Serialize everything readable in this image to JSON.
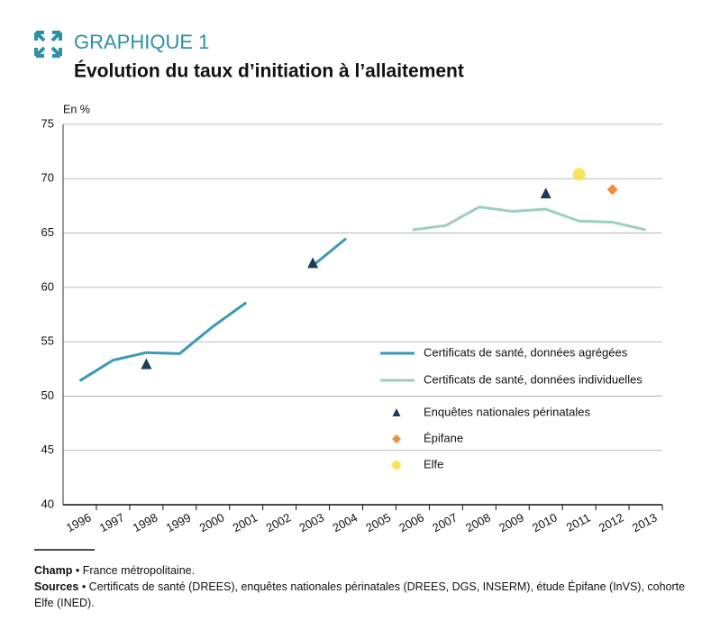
{
  "header": {
    "label": "GRAPHIQUE 1"
  },
  "chart_data": {
    "type": "line",
    "title": "Évolution du taux d’initiation à l’allaitement",
    "ylabel": "En %",
    "categories": [
      "1996",
      "1997",
      "1998",
      "1999",
      "2000",
      "2001",
      "2002",
      "2003",
      "2004",
      "2005",
      "2006",
      "2007",
      "2008",
      "2009",
      "2010",
      "2011",
      "2012",
      "2013"
    ],
    "ylim": [
      40,
      75
    ],
    "yticks": [
      40,
      45,
      50,
      55,
      60,
      65,
      70,
      75
    ],
    "grid": true,
    "series": [
      {
        "name": "Certificats de santé, données agrégées",
        "color": "#3a9ab5",
        "mark": "line",
        "values": [
          51.4,
          53.3,
          54.0,
          53.9,
          56.4,
          58.6,
          null,
          62.0,
          64.5,
          null,
          null,
          null,
          null,
          null,
          null,
          null,
          null,
          null
        ]
      },
      {
        "name": "Certificats de santé, données individuelles",
        "color": "#9ccfc0",
        "mark": "line",
        "values": [
          null,
          null,
          null,
          null,
          null,
          null,
          null,
          null,
          null,
          null,
          65.3,
          65.7,
          67.4,
          67.0,
          67.2,
          66.1,
          66.0,
          65.3
        ]
      },
      {
        "name": "Enquêtes nationales périnatales",
        "color": "#1e3a5a",
        "mark": "triangle",
        "values": [
          null,
          null,
          52.9,
          null,
          null,
          null,
          null,
          62.2,
          null,
          null,
          null,
          null,
          null,
          null,
          68.6,
          null,
          null,
          null
        ]
      },
      {
        "name": "Épifane",
        "color": "#f28c3a",
        "mark": "diamond",
        "values": [
          null,
          null,
          null,
          null,
          null,
          null,
          null,
          null,
          null,
          null,
          null,
          null,
          null,
          null,
          null,
          null,
          69.0,
          null
        ]
      },
      {
        "name": "Elfe",
        "color": "#f7e45a",
        "mark": "circle",
        "values": [
          null,
          null,
          null,
          null,
          null,
          null,
          null,
          null,
          null,
          null,
          null,
          null,
          null,
          null,
          null,
          70.4,
          null,
          null
        ]
      }
    ]
  },
  "footer": {
    "champ": {
      "label": "Champ",
      "text": "• France métropolitaine."
    },
    "sources": {
      "label": "Sources",
      "text": "• Certificats de santé (DREES), enquêtes nationales périnatales (DREES, DGS, INSERM), étude Épifane (InVS), cohorte Elfe (INED)."
    }
  }
}
